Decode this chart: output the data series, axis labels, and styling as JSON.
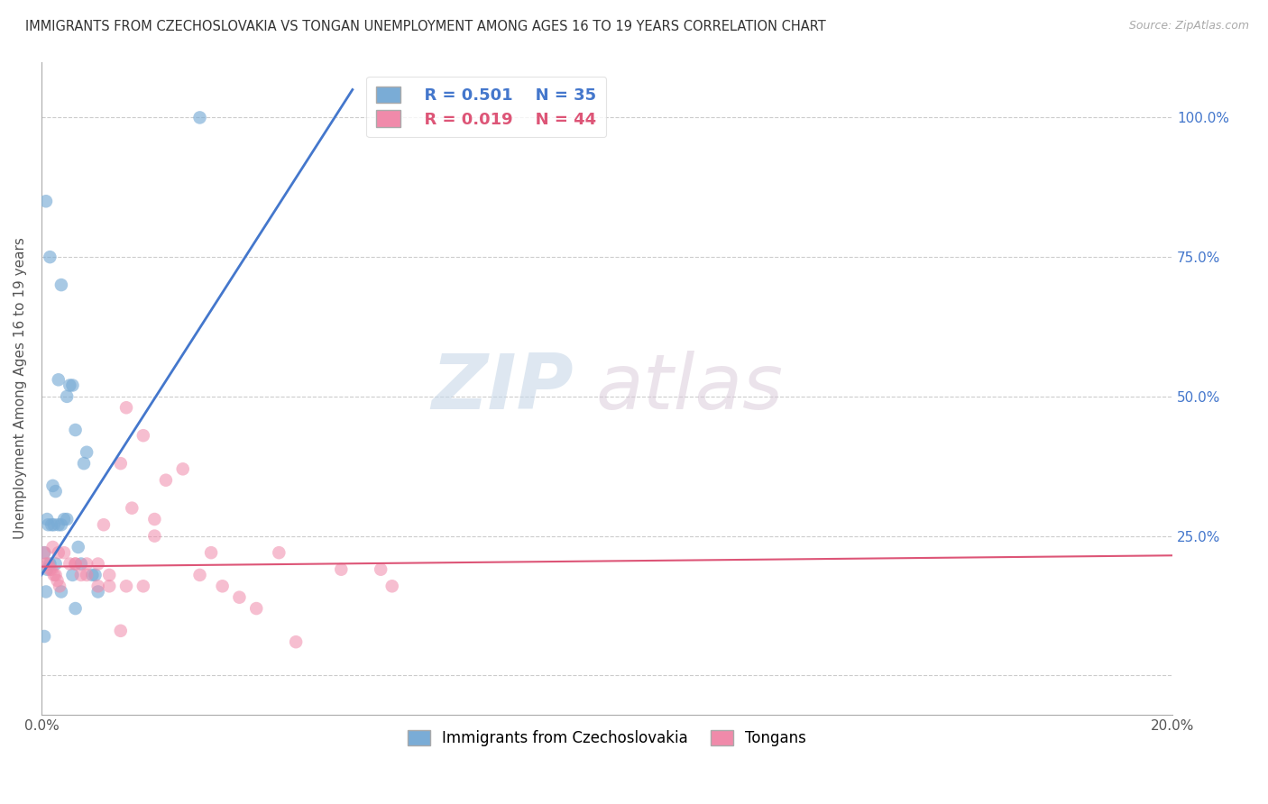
{
  "title": "IMMIGRANTS FROM CZECHOSLOVAKIA VS TONGAN UNEMPLOYMENT AMONG AGES 16 TO 19 YEARS CORRELATION CHART",
  "source": "Source: ZipAtlas.com",
  "ylabel": "Unemployment Among Ages 16 to 19 years",
  "xlim": [
    0.0,
    0.2
  ],
  "ylim": [
    -0.07,
    1.1
  ],
  "xticks": [
    0.0,
    0.05,
    0.1,
    0.15,
    0.2
  ],
  "yticks": [
    0.0,
    0.25,
    0.5,
    0.75,
    1.0
  ],
  "right_ytick_labels": [
    "",
    "25.0%",
    "50.0%",
    "75.0%",
    "100.0%"
  ],
  "grid_color": "#cccccc",
  "background_color": "#ffffff",
  "legend_R1": "R = 0.501",
  "legend_N1": "N = 35",
  "legend_R2": "R = 0.019",
  "legend_N2": "N = 44",
  "blue_color": "#7aacd6",
  "pink_color": "#f08aaa",
  "line_blue_color": "#4477cc",
  "line_pink_color": "#dd5577",
  "right_axis_color": "#4477cc",
  "watermark_zip": "ZIP",
  "watermark_atlas": "atlas",
  "blue_scatter_x": [
    0.0008,
    0.0015,
    0.0035,
    0.003,
    0.005,
    0.0055,
    0.0045,
    0.006,
    0.008,
    0.0075,
    0.002,
    0.0025,
    0.001,
    0.0012,
    0.0018,
    0.0022,
    0.003,
    0.0035,
    0.004,
    0.0045,
    0.0065,
    0.007,
    0.009,
    0.01,
    0.0015,
    0.0025,
    0.0055,
    0.0095,
    0.0005,
    0.001,
    0.0035,
    0.006,
    0.0005,
    0.0008,
    0.028
  ],
  "blue_scatter_y": [
    0.85,
    0.75,
    0.7,
    0.53,
    0.52,
    0.52,
    0.5,
    0.44,
    0.4,
    0.38,
    0.34,
    0.33,
    0.28,
    0.27,
    0.27,
    0.27,
    0.27,
    0.27,
    0.28,
    0.28,
    0.23,
    0.2,
    0.18,
    0.15,
    0.2,
    0.2,
    0.18,
    0.18,
    0.22,
    0.19,
    0.15,
    0.12,
    0.07,
    0.15,
    1.0
  ],
  "pink_scatter_x": [
    0.015,
    0.018,
    0.014,
    0.016,
    0.011,
    0.02,
    0.03,
    0.042,
    0.002,
    0.003,
    0.004,
    0.005,
    0.006,
    0.007,
    0.008,
    0.01,
    0.012,
    0.015,
    0.006,
    0.008,
    0.01,
    0.012,
    0.018,
    0.022,
    0.025,
    0.028,
    0.032,
    0.035,
    0.038,
    0.045,
    0.053,
    0.0005,
    0.0008,
    0.0012,
    0.0015,
    0.0018,
    0.0022,
    0.0025,
    0.0028,
    0.0032,
    0.06,
    0.062,
    0.02,
    0.014
  ],
  "pink_scatter_y": [
    0.48,
    0.43,
    0.38,
    0.3,
    0.27,
    0.28,
    0.22,
    0.22,
    0.23,
    0.22,
    0.22,
    0.2,
    0.2,
    0.18,
    0.18,
    0.16,
    0.16,
    0.16,
    0.2,
    0.2,
    0.2,
    0.18,
    0.16,
    0.35,
    0.37,
    0.18,
    0.16,
    0.14,
    0.12,
    0.06,
    0.19,
    0.22,
    0.2,
    0.2,
    0.19,
    0.19,
    0.18,
    0.18,
    0.17,
    0.16,
    0.19,
    0.16,
    0.25,
    0.08
  ],
  "blue_line_x": [
    0.0,
    0.055
  ],
  "blue_line_y": [
    0.18,
    1.05
  ],
  "pink_line_x": [
    0.0,
    0.2
  ],
  "pink_line_y": [
    0.195,
    0.215
  ]
}
